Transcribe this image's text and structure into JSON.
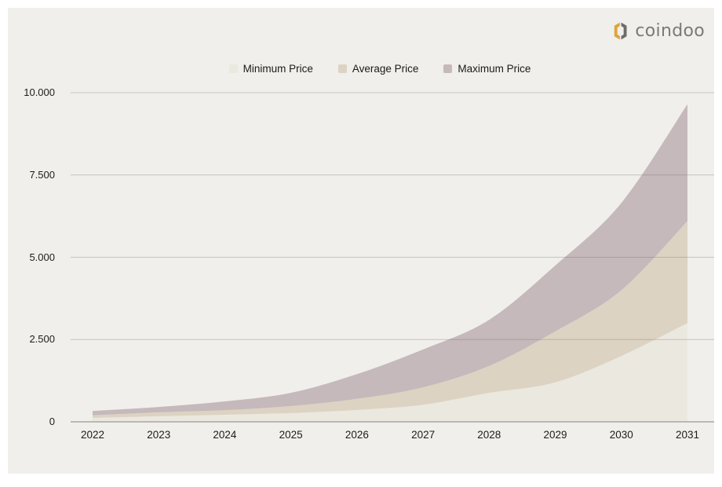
{
  "logo": {
    "text": "coindoo",
    "icon_gold": "#dfa43c",
    "icon_gray": "#6d6d6d",
    "text_color": "#7a7a7a"
  },
  "colors": {
    "panel_bg": "#f0efeb",
    "grid_overlay": "rgba(110,105,100,0.32)",
    "axis_line": "#a9a7a3",
    "tick_text": "#1d1d1d"
  },
  "chart_data": {
    "type": "area",
    "title": "",
    "xlabel": "",
    "ylabel": "",
    "categories": [
      "2022",
      "2023",
      "2024",
      "2025",
      "2026",
      "2027",
      "2028",
      "2029",
      "2030",
      "2031"
    ],
    "series": [
      {
        "name": "Minimum Price",
        "color": "#ebe8e0",
        "values": [
          120,
          170,
          215,
          265,
          360,
          520,
          880,
          1200,
          2000,
          3000
        ]
      },
      {
        "name": "Average Price",
        "color": "#ddd3c3",
        "values": [
          200,
          290,
          355,
          480,
          700,
          1050,
          1700,
          2750,
          4000,
          6100
        ]
      },
      {
        "name": "Maximum Price",
        "color": "#c5b9bc",
        "values": [
          330,
          450,
          620,
          880,
          1450,
          2200,
          3100,
          4750,
          6650,
          9650
        ]
      }
    ],
    "y_tick_values": [
      0,
      2500,
      5000,
      7500,
      10000
    ],
    "y_tick_labels": [
      "0",
      "2.500",
      "5.000",
      "7.500",
      "10.000"
    ],
    "ylim": [
      0,
      10000
    ],
    "grid": true,
    "legend_position": "top",
    "overlay": true
  }
}
